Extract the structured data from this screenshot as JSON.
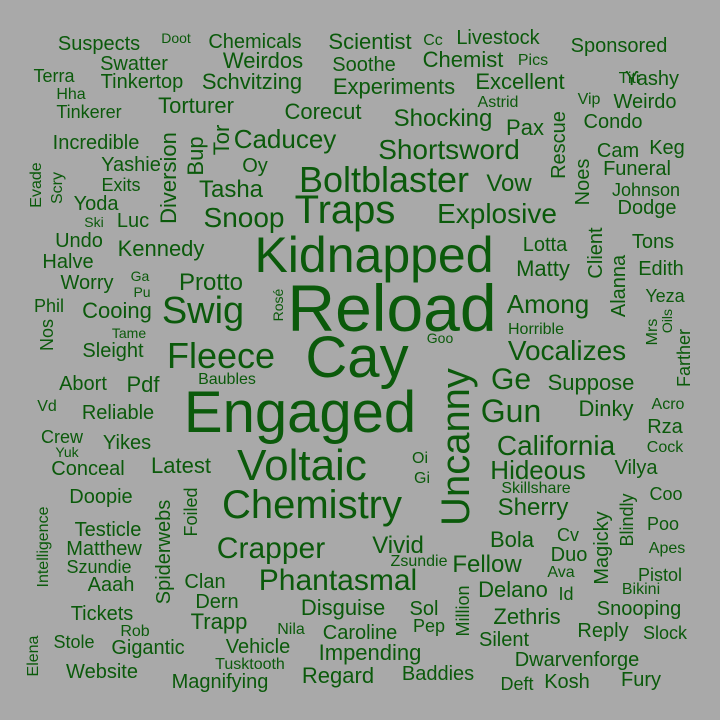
{
  "colors": {
    "background": "#a9a9a9",
    "text": "#0b5a0b"
  },
  "words": [
    "Reload",
    "Cay",
    "Engaged",
    "Kidnapped",
    "Voltaic",
    "Chemistry",
    "Uncanny",
    "Traps",
    "Boltblaster",
    "Fleece",
    "Swig",
    "Phantasmal",
    "Crapper",
    "Explosive",
    "Snoop",
    "Shortsword",
    "California",
    "Gun",
    "Vocalizes",
    "Ge",
    "Among",
    "Tasha",
    "Caducey",
    "Protto",
    "Kennedy",
    "Hideous",
    "Sherry",
    "Vivid",
    "Fellow",
    "Delano",
    "Disguise",
    "Caroline",
    "Impending",
    "Regard",
    "Baddies",
    "Dwarvenforge",
    "Silent",
    "Zethris",
    "Snooping",
    "Reply",
    "Vehicle",
    "Trapp",
    "Magnifying",
    "Gigantic",
    "Website",
    "Aaah",
    "Szundie",
    "Matthew",
    "Testicle",
    "Doopie",
    "Conceal",
    "Yikes",
    "Latest",
    "Reliable",
    "Abort",
    "Pdf",
    "Sleight",
    "Cooing",
    "Worry",
    "Halve",
    "Undo",
    "Yoda",
    "Exits",
    "Yashie",
    "Incredible",
    "Tinkerer",
    "Torturer",
    "Corecut",
    "Shocking",
    "Experiments",
    "Excellent",
    "Chemist",
    "Livestock",
    "Scientist",
    "Chemicals",
    "Weirdos",
    "Soothe",
    "Schvitzing",
    "Tinkertop",
    "Swatter",
    "Suspects",
    "Sponsored",
    "Yashy",
    "Weirdo",
    "Condo",
    "Pax",
    "Astrid",
    "Vow",
    "Funeral",
    "Cam",
    "Keg",
    "Dodge",
    "Johnson",
    "Tons",
    "Lotta",
    "Matty",
    "Edith",
    "Yeza",
    "Suppose",
    "Dinky",
    "Rza",
    "Acro",
    "Cock",
    "Vilya",
    "Coo",
    "Poo",
    "Apes",
    "Pistol",
    "Bikini",
    "Slock",
    "Fury",
    "Kosh",
    "Deft",
    "Duo",
    "Bola",
    "Cv",
    "Ava",
    "Id",
    "Pep",
    "Sol",
    "Nila",
    "Rob",
    "Stole",
    "Tickets",
    "Clan",
    "Dern",
    "Tusktooth",
    "Zsundie",
    "Skillshare",
    "Goo",
    "Baubles",
    "Horrible",
    "Luc",
    "Ski",
    "Kennedy",
    "Tor",
    "Oy",
    "Bup",
    "Diversion",
    "Scry",
    "Evade",
    "Nos",
    "Phil",
    "Tame",
    "Ga",
    "Pu",
    "Rosé",
    "Crew",
    "Yuk",
    "Vd",
    "Oi",
    "Gi",
    "Foiled",
    "Spiderwebs",
    "Intelligence",
    "Elena",
    "Million",
    "Magicky",
    "Blindly",
    "Mrs",
    "Oils",
    "Farther",
    "Alanna",
    "Client",
    "Noes",
    "Rescue",
    "Vip",
    "Titi",
    "Pics",
    "Cc",
    "Doot",
    "Terra",
    "Hha",
    "Tinkerer"
  ]
}
